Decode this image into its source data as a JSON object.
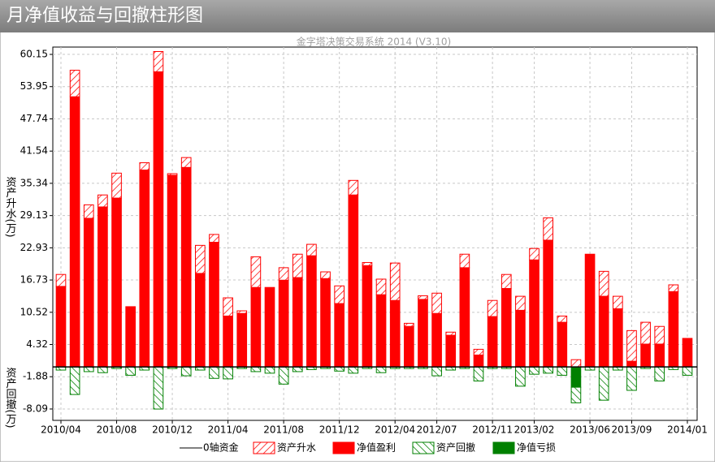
{
  "header": {
    "title": "月净值收益与回撤柱形图"
  },
  "chart_data": {
    "type": "bar",
    "title": "金字塔决策交易系统 2014 (V3.10)",
    "y_label_top": "资产升水(万)",
    "y_label_bottom": "资产回撤(万)",
    "categories": [
      "2010/04",
      null,
      null,
      null,
      "2010/08",
      null,
      null,
      null,
      "2010/12",
      null,
      null,
      null,
      "2011/04",
      null,
      null,
      null,
      "2011/08",
      null,
      null,
      null,
      "2011/12",
      null,
      null,
      null,
      "2012/04",
      null,
      null,
      "2012/07",
      null,
      null,
      null,
      "2012/11",
      null,
      null,
      "2013/02",
      null,
      null,
      null,
      "2013/06",
      null,
      null,
      "2013/09",
      null,
      null,
      null,
      "2014/01"
    ],
    "zero_line": {
      "name": "0轴资金",
      "color": "#000000"
    },
    "series": [
      {
        "name": "资产升水",
        "color": "#ff0000",
        "hatched": true,
        "stack": "up",
        "values": [
          2.3,
          5.1,
          2.6,
          2.3,
          4.8,
          null,
          1.4,
          3.9,
          0.3,
          1.9,
          5.4,
          1.5,
          3.5,
          0.5,
          5.9,
          null,
          2.4,
          4.5,
          2.2,
          1.3,
          3.4,
          2.8,
          0.6,
          3.0,
          7.2,
          0.6,
          0.7,
          3.9,
          0.6,
          2.6,
          1.1,
          3.1,
          2.7,
          2.7,
          2.2,
          4.3,
          1.2,
          1.4,
          null,
          4.8,
          2.4,
          5.9,
          4.2,
          3.4,
          1.3,
          null
        ]
      },
      {
        "name": "净值盈利",
        "color": "#ff0000",
        "hatched": false,
        "stack": "up",
        "values": [
          15.5,
          52.0,
          28.6,
          30.8,
          32.5,
          11.6,
          37.9,
          56.8,
          36.9,
          38.4,
          18.0,
          24.0,
          9.8,
          10.3,
          15.3,
          15.3,
          16.7,
          17.2,
          21.4,
          17.0,
          12.2,
          33.1,
          19.5,
          13.9,
          12.8,
          7.8,
          13.0,
          10.3,
          6.1,
          19.1,
          2.3,
          9.7,
          15.1,
          10.9,
          20.6,
          24.4,
          8.6,
          null,
          21.7,
          13.6,
          11.2,
          1.1,
          4.4,
          4.4,
          14.5,
          5.5
        ]
      },
      {
        "name": "资产回撤",
        "color": "#008000",
        "hatched": true,
        "stack": "down",
        "values": [
          -0.6,
          -5.3,
          -0.9,
          -1.1,
          -0.3,
          -1.6,
          -0.6,
          -8.1,
          -0.3,
          -1.7,
          -0.6,
          -2.2,
          -2.3,
          -0.3,
          -0.9,
          -1.2,
          -3.3,
          -0.9,
          -0.5,
          -0.3,
          -0.8,
          -1.2,
          -0.3,
          -1.1,
          -0.3,
          -0.3,
          -0.3,
          -1.7,
          -0.6,
          -0.3,
          -2.7,
          -0.3,
          -0.3,
          -3.7,
          -1.4,
          -1.2,
          -1.6,
          -3.0,
          -0.6,
          -6.4,
          -0.6,
          -4.5,
          -0.3,
          -2.7,
          -0.5,
          -1.6
        ]
      },
      {
        "name": "净值亏损",
        "color": "#008000",
        "hatched": false,
        "stack": "down",
        "values": [
          null,
          null,
          null,
          null,
          null,
          null,
          null,
          null,
          null,
          null,
          null,
          null,
          null,
          null,
          null,
          null,
          null,
          null,
          null,
          null,
          null,
          null,
          null,
          null,
          null,
          null,
          null,
          null,
          null,
          null,
          null,
          null,
          null,
          null,
          null,
          null,
          null,
          -3.9,
          null,
          null,
          null,
          null,
          null,
          null,
          null,
          null
        ]
      }
    ],
    "ylim": [
      -10.28,
      61.56
    ],
    "yticks": [
      60.15,
      53.95,
      47.74,
      41.54,
      35.34,
      29.13,
      22.93,
      16.73,
      10.52,
      4.32,
      -1.88,
      -8.09
    ],
    "grid": true
  }
}
